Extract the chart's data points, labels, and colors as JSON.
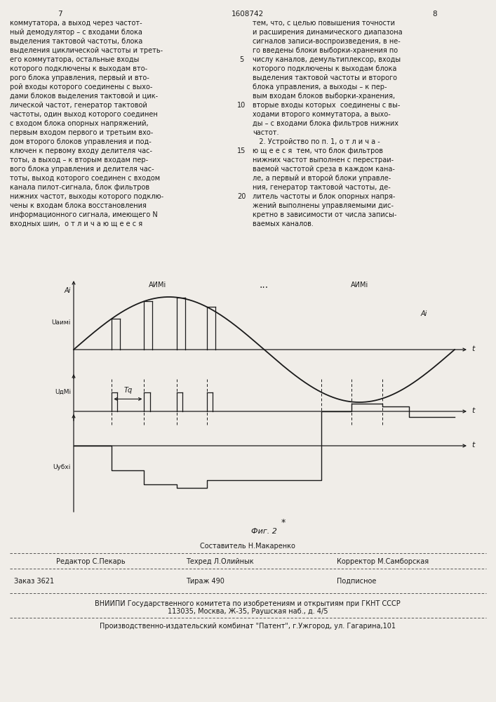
{
  "page_number_left": "7",
  "page_number_center": "1608742",
  "page_number_right": "8",
  "text_left_lines": [
    "коммутатора, а выход через частот-",
    "ный демодулятор – с входами блока",
    "выделения тактовой частоты, блока",
    "выделения циклической частоты и треть-",
    "его коммутатора, остальные входы",
    "которого подключены к выходам вто-",
    "рого блока управления, первый и вто-",
    "рой входы которого соединены с выхо-",
    "дами блоков выделения тактовой и цик-",
    "лической частот, генератор тактовой",
    "частоты, один выход которого соединен",
    "с входом блока опорных напряжений,",
    "первым входом первого и третьим вхо-",
    "дом второго блоков управления и под-",
    "ключен к первому входу делителя час-",
    "тоты, а выход – к вторым входам пер-",
    "вого блока управления и делителя час-",
    "тоты, выход которого соединен с входом",
    "канала пилот-сигнала, блок фильтров",
    "нижних частот, выходы которого подклю-",
    "чены к входам блока восстановления",
    "информационного сигнала, имеющего N",
    "входных шин,  о т л и ч а ю щ е е с я"
  ],
  "line_numbers": [
    [
      5,
      4
    ],
    [
      10,
      9
    ],
    [
      15,
      14
    ],
    [
      20,
      19
    ]
  ],
  "text_right_lines": [
    "тем, что, с целью повышения точности",
    "и расширения динамического диапазона",
    "сигналов записи-воспроизведения, в не-",
    "го введены блоки выборки-хранения по",
    "числу каналов, демультиплексор, входы",
    "которого подключены к выходам блока",
    "выделения тактовой частоты и второго",
    "блока управления, а выходы – к пер-",
    "вым входам блоков выборки-хранения,",
    "вторые входы которых  соединены с вы-",
    "ходами второго коммутатора, а выхо-",
    "ды – с входами блока фильтров нижних",
    "частот.",
    "   2. Устройство по п. 1, о т л и ч а -",
    "ю щ е е с я  тем, что блок фильтров",
    "нижних частот выполнен с перестраи-",
    "ваемой частотой среза в каждом кана-",
    "ле, а первый и второй блоки управле-",
    "ния, генератор тактовой частоты, де-",
    "литель частоты и блок опорных напря-",
    "жений выполнены управляемыми дис-",
    "кретно в зависимости от числа записы-",
    "ваемых каналов."
  ],
  "fig_caption": "Фиг. 2",
  "editor_label": "Редактор С.Пекарь",
  "composer_label": "Составитель Н.Макаренко",
  "techred_label": "Техред Л.Олийнык",
  "corrector_label": "Корректор М.Самборская",
  "order_label": "Заказ 3621",
  "tirazh_label": "Тираж 490",
  "podpisnoe_label": "Подписное",
  "vnipi_line1": "ВНИИПИ Государственного комитета по изобретениям и открытиям при ГКНТ СССР",
  "vnipi_line2": "113035, Москва, Ж-35, Раушская наб., д. 4/5",
  "factory_line": "Производственно-издательский комбинат \"Патент\", г.Ужгород, ул. Гагарина,101",
  "bg_color": "#f0ede8",
  "text_color": "#1a1a1a"
}
